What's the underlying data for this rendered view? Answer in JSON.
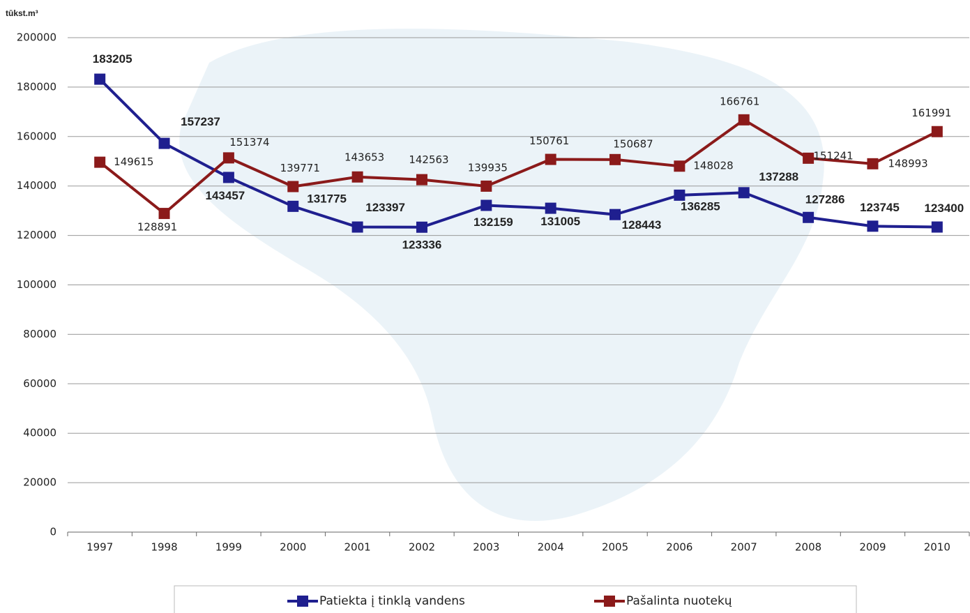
{
  "chart_data": {
    "type": "line",
    "y_label": "tūkst.m³",
    "categories": [
      "1997",
      "1998",
      "1999",
      "2000",
      "2001",
      "2002",
      "2003",
      "2004",
      "2005",
      "2006",
      "2007",
      "2008",
      "2009",
      "2010"
    ],
    "series": [
      {
        "name": "Patiekta į tinklą vandens",
        "color": "#1f1f8f",
        "values": [
          183205,
          157237,
          143457,
          131775,
          123397,
          123336,
          132159,
          131005,
          128443,
          136285,
          137288,
          127286,
          123745,
          123400
        ]
      },
      {
        "name": "Pašalinta nuotekų",
        "color": "#8b1a1a",
        "values": [
          149615,
          128891,
          151374,
          139771,
          143653,
          142563,
          139935,
          150761,
          150687,
          148028,
          166761,
          151241,
          148993,
          161991
        ]
      }
    ],
    "ylim": [
      0,
      200000
    ],
    "yticks": [
      0,
      20000,
      40000,
      60000,
      80000,
      100000,
      120000,
      140000,
      160000,
      180000,
      200000
    ],
    "grid": true
  }
}
